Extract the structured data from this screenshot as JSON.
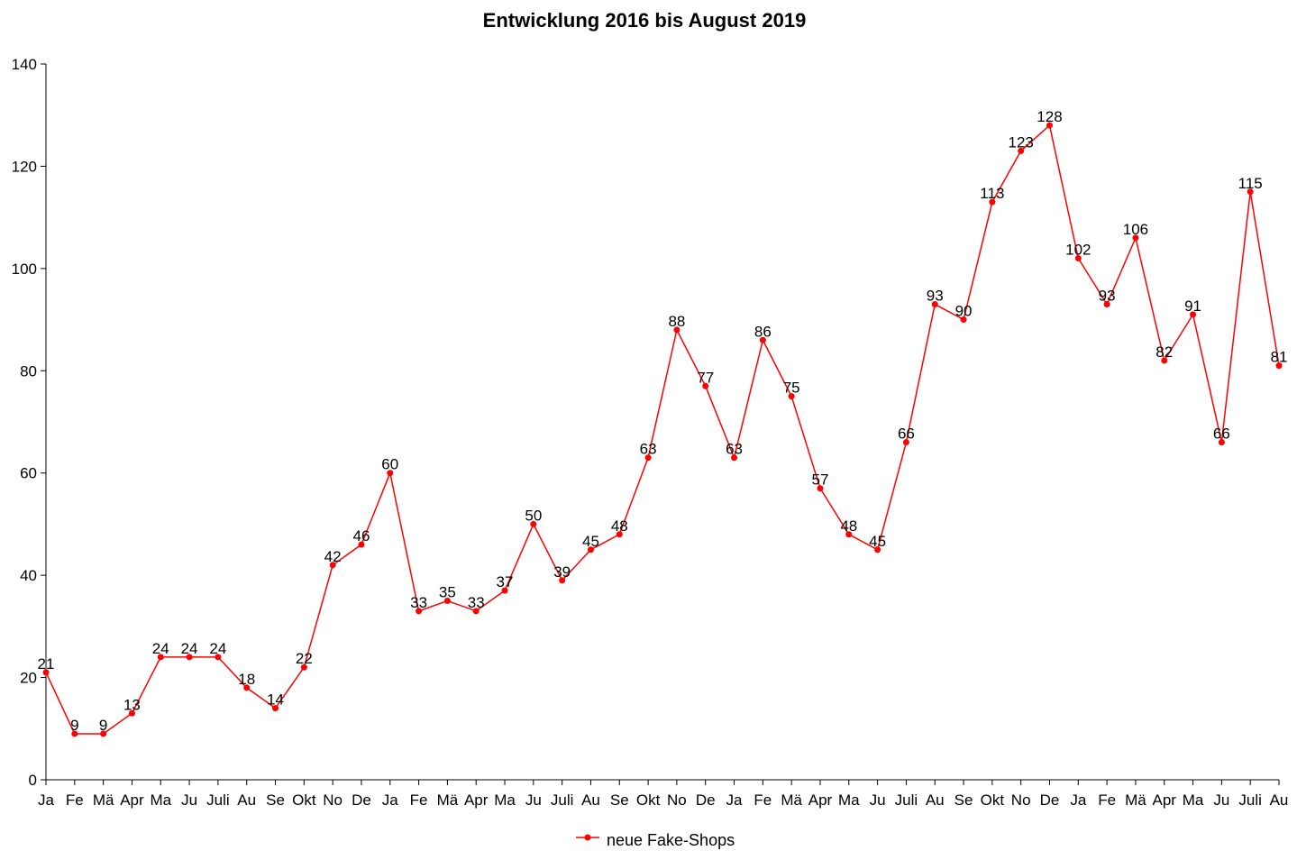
{
  "chart_data": {
    "type": "line",
    "title": "Entwicklung 2016 bis August 2019",
    "xlabel": "",
    "ylabel": "",
    "ylim": [
      0,
      140
    ],
    "yticks": [
      0,
      20,
      40,
      60,
      80,
      100,
      120,
      140
    ],
    "grid": false,
    "legend_position": "bottom",
    "categories": [
      "Ja",
      "Fe",
      "Mä",
      "Apr",
      "Ma",
      "Ju",
      "Juli",
      "Au",
      "Se",
      "Okt",
      "No",
      "De",
      "Ja",
      "Fe",
      "Mä",
      "Apr",
      "Ma",
      "Ju",
      "Juli",
      "Au",
      "Se",
      "Okt",
      "No",
      "De",
      "Ja",
      "Fe",
      "Mä",
      "Apr",
      "Ma",
      "Ju",
      "Juli",
      "Au",
      "Se",
      "Okt",
      "No",
      "De",
      "Ja",
      "Fe",
      "Mä",
      "Apr",
      "Ma",
      "Ju",
      "Juli",
      "Au"
    ],
    "series": [
      {
        "name": "neue Fake-Shops",
        "color": "#ff0000",
        "values": [
          21,
          9,
          9,
          13,
          24,
          24,
          24,
          18,
          14,
          22,
          42,
          46,
          60,
          33,
          35,
          33,
          37,
          50,
          39,
          45,
          48,
          63,
          88,
          77,
          63,
          86,
          75,
          57,
          48,
          45,
          66,
          93,
          90,
          113,
          123,
          128,
          102,
          93,
          106,
          82,
          91,
          66,
          115,
          81
        ]
      }
    ]
  }
}
